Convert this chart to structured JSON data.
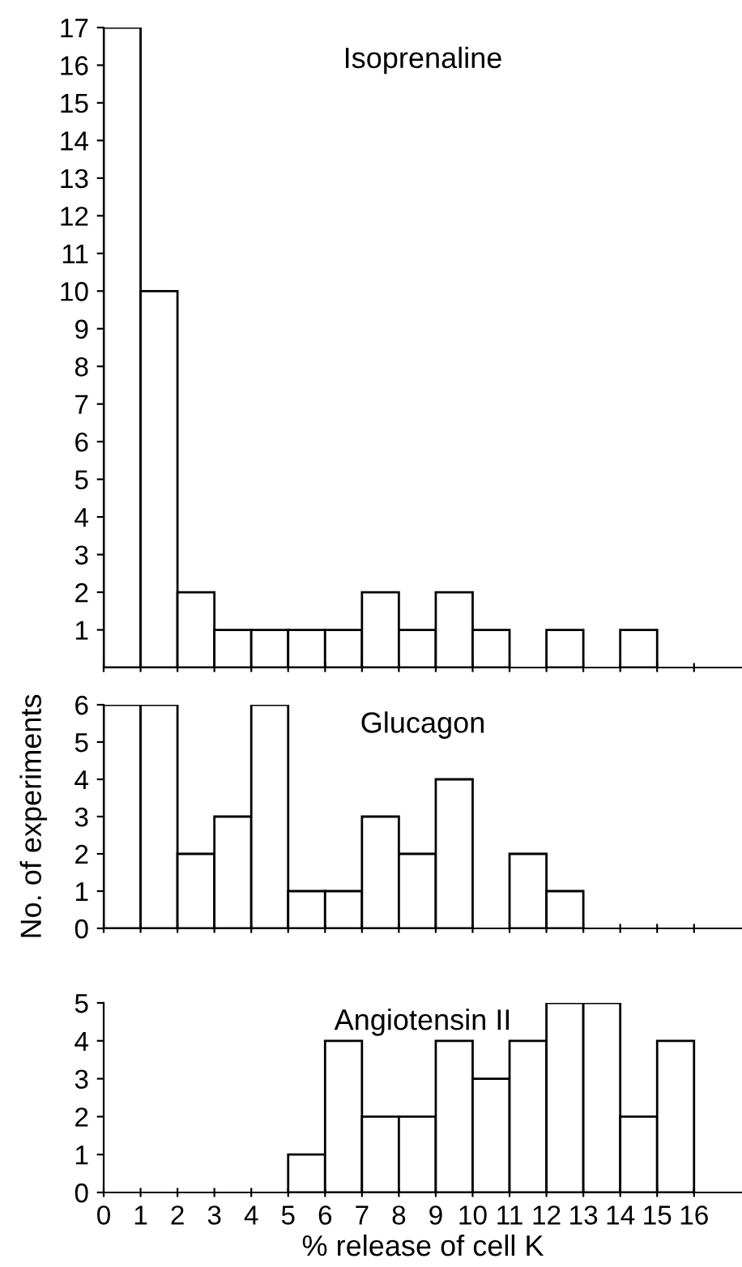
{
  "chart_data": [
    {
      "type": "histogram",
      "title": "Isoprenaline",
      "bins": [
        0,
        1,
        2,
        3,
        4,
        5,
        6,
        7,
        8,
        9,
        10,
        11,
        12,
        13,
        14,
        15,
        16
      ],
      "values": [
        17,
        10,
        2,
        1,
        1,
        1,
        1,
        2,
        1,
        2,
        1,
        0,
        1,
        0,
        1,
        0
      ],
      "color": "#ffffff",
      "xlim": [
        0,
        17.3
      ],
      "xticks": [
        0,
        1,
        2,
        3,
        4,
        5,
        6,
        7,
        8,
        9,
        10,
        11,
        12,
        13,
        14,
        15,
        16
      ],
      "ylim": [
        0,
        17
      ],
      "yticks": [
        1,
        2,
        3,
        4,
        5,
        6,
        7,
        8,
        9,
        10,
        11,
        12,
        13,
        14,
        15,
        16,
        17
      ],
      "tick_labels": "y",
      "grid": false
    },
    {
      "type": "histogram",
      "title": "Glucagon",
      "ylabel": "No. of experiments",
      "bins": [
        0,
        1,
        2,
        3,
        4,
        5,
        6,
        7,
        8,
        9,
        10,
        11,
        12,
        13,
        14,
        15,
        16
      ],
      "values": [
        6,
        6,
        2,
        3,
        6,
        1,
        1,
        3,
        2,
        4,
        0,
        2,
        1,
        0,
        0,
        0
      ],
      "color": "#ffffff",
      "xlim": [
        0,
        17.3
      ],
      "xticks": [
        0,
        1,
        2,
        3,
        4,
        5,
        6,
        7,
        8,
        9,
        10,
        11,
        12,
        13,
        14,
        15,
        16
      ],
      "ylim": [
        0,
        6
      ],
      "yticks": [
        0,
        1,
        2,
        3,
        4,
        5,
        6
      ],
      "tick_labels": "y",
      "grid": false
    },
    {
      "type": "histogram",
      "title": "Angiotensin II",
      "xlabel": "% release of cell K",
      "bins": [
        0,
        1,
        2,
        3,
        4,
        5,
        6,
        7,
        8,
        9,
        10,
        11,
        12,
        13,
        14,
        15,
        16
      ],
      "values": [
        0,
        0,
        0,
        0,
        0,
        1,
        4,
        2,
        2,
        4,
        3,
        4,
        5,
        5,
        2,
        4
      ],
      "color": "#ffffff",
      "xlim": [
        0,
        17.3
      ],
      "xticks": [
        0,
        1,
        2,
        3,
        4,
        5,
        6,
        7,
        8,
        9,
        10,
        11,
        12,
        13,
        14,
        15,
        16
      ],
      "ylim": [
        0,
        5
      ],
      "yticks": [
        0,
        1,
        2,
        3,
        4,
        5
      ],
      "grid": false
    }
  ]
}
